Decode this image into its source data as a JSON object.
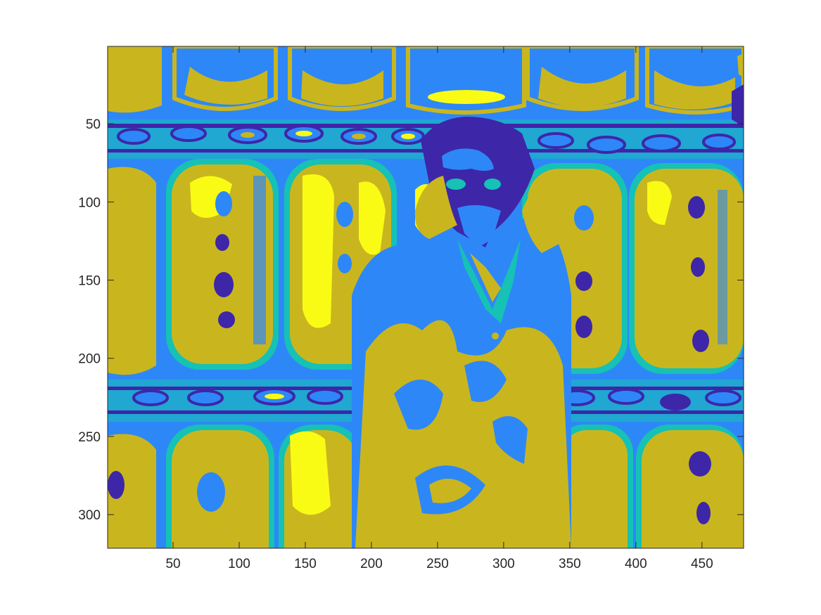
{
  "chart_data": {
    "type": "heatmap",
    "title": "",
    "xlabel": "",
    "ylabel": "",
    "xlim": [
      0.5,
      481.5
    ],
    "ylim": [
      0.5,
      321.5
    ],
    "y_direction": "reversed",
    "grid": false,
    "legend": "none",
    "colorbar": false,
    "colormap": "parula",
    "x_ticks": [
      50,
      100,
      150,
      200,
      250,
      300,
      350,
      400,
      450
    ],
    "x_tick_labels": [
      "50",
      "100",
      "150",
      "200",
      "250",
      "300",
      "350",
      "400",
      "450"
    ],
    "y_ticks": [
      50,
      100,
      150,
      200,
      250,
      300
    ],
    "y_tick_labels": [
      "50",
      "100",
      "150",
      "200",
      "250",
      "300"
    ],
    "class_colors": [
      "#3e26a8",
      "#2e87f7",
      "#16c1b5",
      "#c9b61e",
      "#f9fb15"
    ],
    "image_summary": "indexed 5-level image (481 x 321 pixels) of a figure in front of a tiled wall pattern"
  }
}
